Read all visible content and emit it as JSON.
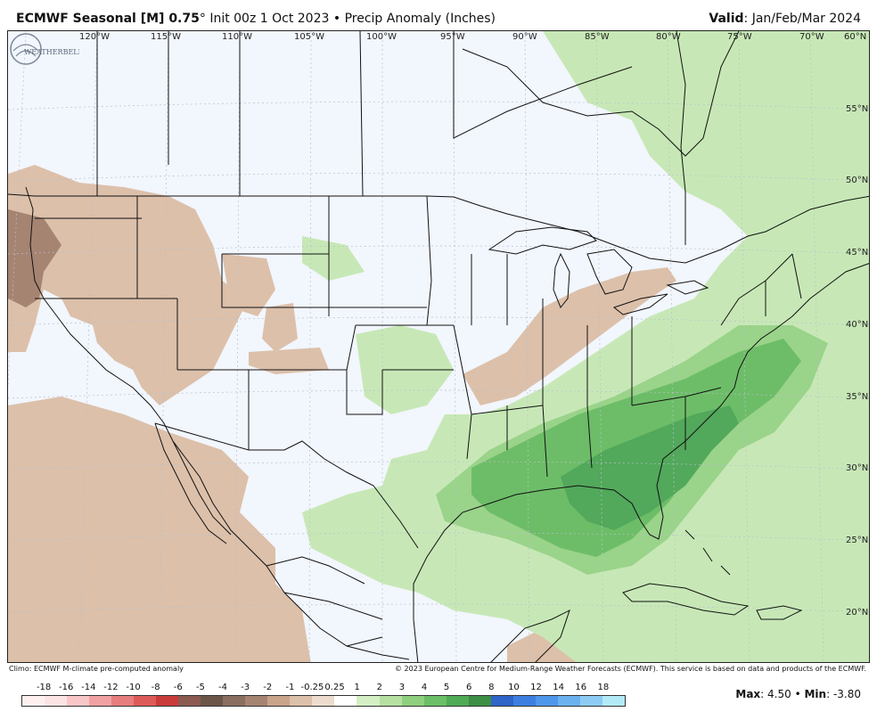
{
  "header": {
    "model": "ECMWF Seasonal [M] 0.75",
    "deg": "°",
    "init": "Init 00z 1 Oct 2023",
    "bullet": "•",
    "product": "Precip Anomaly (Inches)",
    "valid_label": "Valid",
    "valid_value": ": Jan/Feb/Mar 2024"
  },
  "map": {
    "lon_labels": [
      "120°W",
      "115°W",
      "110°W",
      "105°W",
      "100°W",
      "95°W",
      "90°W",
      "85°W",
      "80°W",
      "75°W",
      "70°W",
      "60°N"
    ],
    "lat_labels": [
      "55°N",
      "50°N",
      "45°N",
      "40°N",
      "35°N",
      "30°N",
      "25°N",
      "20°N"
    ],
    "logo_text": "WEATHERBELL",
    "colors": {
      "background": "#f2f6fd",
      "dry_light": "#dcc0aa",
      "dry_mid": "#c9a38a",
      "dry_dark": "#a68472",
      "wet_light": "#c7e8b6",
      "wet_mid": "#9ad38a",
      "wet_dark": "#6dbd68",
      "wet_darker": "#52a85b"
    }
  },
  "footer": {
    "left": "Climo: ECMWF M-climate pre-computed anomaly",
    "right": "© 2023 European Centre for Medium-Range Weather Forecasts (ECMWF). This service is based on data and products of the ECMWF."
  },
  "scale": {
    "labels": [
      "-18",
      "-16",
      "-14",
      "-12",
      "-10",
      "-8",
      "-6",
      "-5",
      "-4",
      "-3",
      "-2",
      "-1",
      "-0.25",
      "0.25",
      "1",
      "2",
      "3",
      "4",
      "5",
      "6",
      "8",
      "10",
      "12",
      "14",
      "16",
      "18"
    ],
    "colors": [
      "#fde4e4",
      "#f8c6c6",
      "#f1a1a1",
      "#e87d7d",
      "#de5a5a",
      "#c93b3b",
      "#8c5a50",
      "#6b5549",
      "#8a6e60",
      "#a68472",
      "#c9a38a",
      "#dcc0aa",
      "#eddccd",
      "#ffffff",
      "#d4efc4",
      "#b6e0a2",
      "#8ed07e",
      "#6bbf66",
      "#4fab56",
      "#3c8f45",
      "#2f64c8",
      "#3d7fe0",
      "#4e97ea",
      "#6bb1f0",
      "#8cccf4",
      "#b2eaf8"
    ]
  },
  "stats": {
    "max_label": "Max",
    "max_value": ": 4.50",
    "bullet": "•",
    "min_label": "Min",
    "min_value": ": -3.80"
  }
}
